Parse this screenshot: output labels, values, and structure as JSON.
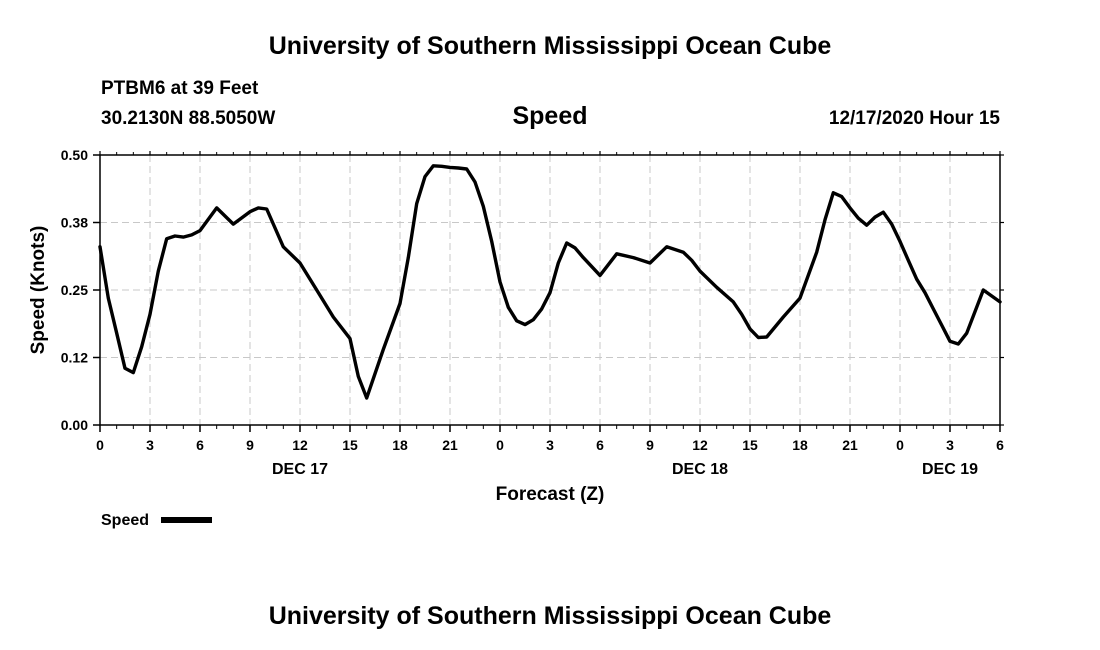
{
  "header": {
    "title": "University of Southern Mississippi Ocean Cube",
    "station": "PTBM6 at 39 Feet",
    "location": "30.2130N 88.5050W",
    "chart_title": "Speed",
    "run_time": "12/17/2020 Hour 15"
  },
  "footer": {
    "title": "University of Southern Mississippi Ocean Cube"
  },
  "legend": {
    "label": "Speed",
    "color": "#000000"
  },
  "chart_data": {
    "type": "line",
    "title": "Speed",
    "xlabel": "Forecast (Z)",
    "ylabel": "Speed (Knots)",
    "xlim": [
      0,
      54
    ],
    "ylim": [
      0,
      0.5
    ],
    "grid": true,
    "legend_position": "bottom-left",
    "x_ticks": [
      0,
      3,
      6,
      9,
      12,
      15,
      18,
      21,
      24,
      27,
      30,
      33,
      36,
      39,
      42,
      45,
      48,
      51,
      54
    ],
    "x_tick_labels": [
      "0",
      "3",
      "6",
      "9",
      "12",
      "15",
      "18",
      "21",
      "0",
      "3",
      "6",
      "9",
      "12",
      "15",
      "18",
      "21",
      "0",
      "3",
      "6"
    ],
    "y_ticks": [
      0,
      0.125,
      0.25,
      0.375,
      0.5
    ],
    "y_tick_labels": [
      "0.00",
      "0.12",
      "0.25",
      "0.38",
      "0.50"
    ],
    "day_labels": [
      {
        "x": 12,
        "label": "DEC 17"
      },
      {
        "x": 36,
        "label": "DEC 18"
      },
      {
        "x": 51,
        "label": "DEC 19"
      }
    ],
    "series": [
      {
        "name": "Speed",
        "color": "#000000",
        "x": [
          0,
          0.5,
          1,
          1.5,
          2,
          2.5,
          3,
          3.5,
          4,
          4.5,
          5,
          5.5,
          6,
          7,
          8,
          9,
          9.5,
          10,
          11,
          12,
          13,
          14,
          15,
          15.5,
          16,
          17,
          18,
          18.5,
          19,
          19.5,
          20,
          20.5,
          21,
          21.5,
          22,
          22.5,
          23,
          23.5,
          24,
          24.5,
          25,
          25.5,
          26,
          26.5,
          27,
          27.5,
          28,
          28.5,
          29,
          30,
          31,
          32,
          33,
          34,
          35,
          35.5,
          36,
          37,
          38,
          38.5,
          39,
          39.5,
          40,
          41,
          42,
          43,
          43.5,
          44,
          44.5,
          45,
          45.5,
          46,
          46.5,
          47,
          47.5,
          48,
          48.5,
          49,
          49.5,
          50,
          50.5,
          51,
          51.5,
          52,
          53,
          54
        ],
        "y": [
          0.33,
          0.235,
          0.17,
          0.105,
          0.097,
          0.145,
          0.205,
          0.285,
          0.345,
          0.35,
          0.348,
          0.352,
          0.36,
          0.402,
          0.372,
          0.395,
          0.402,
          0.4,
          0.33,
          0.3,
          0.25,
          0.2,
          0.16,
          0.09,
          0.05,
          0.14,
          0.225,
          0.31,
          0.41,
          0.46,
          0.48,
          0.479,
          0.477,
          0.476,
          0.474,
          0.45,
          0.405,
          0.34,
          0.265,
          0.218,
          0.193,
          0.186,
          0.195,
          0.215,
          0.245,
          0.3,
          0.337,
          0.328,
          0.31,
          0.277,
          0.317,
          0.31,
          0.3,
          0.33,
          0.32,
          0.305,
          0.285,
          0.255,
          0.228,
          0.205,
          0.178,
          0.162,
          0.163,
          0.2,
          0.235,
          0.32,
          0.38,
          0.43,
          0.423,
          0.402,
          0.383,
          0.37,
          0.385,
          0.394,
          0.372,
          0.34,
          0.305,
          0.27,
          0.245,
          0.215,
          0.185,
          0.155,
          0.15,
          0.17,
          0.25,
          0.228
        ]
      }
    ]
  }
}
